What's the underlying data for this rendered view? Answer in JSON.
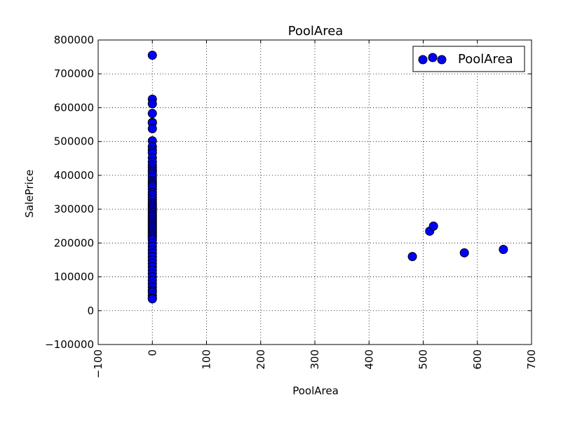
{
  "chart_data": {
    "type": "scatter",
    "title": "PoolArea",
    "xlabel": "PoolArea",
    "ylabel": "SalePrice",
    "xlim": [
      -100,
      700
    ],
    "ylim": [
      -100000,
      800000
    ],
    "x_ticks": [
      -100,
      0,
      100,
      200,
      300,
      400,
      500,
      600,
      700
    ],
    "y_ticks": [
      -100000,
      0,
      100000,
      200000,
      300000,
      400000,
      500000,
      600000,
      700000,
      800000
    ],
    "x_tick_labels": [
      "−100",
      "0",
      "100",
      "200",
      "300",
      "400",
      "500",
      "600",
      "700"
    ],
    "y_tick_labels": [
      "−100000",
      "0",
      "100000",
      "200000",
      "300000",
      "400000",
      "500000",
      "600000",
      "700000",
      "800000"
    ],
    "grid": true,
    "legend_position": "top-right",
    "marker_color": "#0000ff",
    "series": [
      {
        "name": "PoolArea",
        "x": [
          0,
          0,
          0,
          0,
          0,
          0,
          0,
          0,
          0,
          0,
          0,
          0,
          0,
          0,
          0,
          0,
          0,
          0,
          0,
          0,
          0,
          0,
          0,
          0,
          0,
          0,
          0,
          0,
          0,
          0,
          0,
          0,
          0,
          0,
          0,
          0,
          0,
          0,
          0,
          0,
          0,
          0,
          0,
          0,
          0,
          0,
          0,
          0,
          0,
          0,
          0,
          0,
          0,
          0,
          0,
          0,
          0,
          0,
          0,
          0,
          0,
          0,
          0,
          0,
          0,
          0,
          0,
          0,
          0,
          0,
          480,
          512,
          519,
          576,
          648
        ],
        "y": [
          755000,
          625000,
          611657,
          582933,
          556581,
          555000,
          538000,
          501837,
          485000,
          475000,
          466500,
          451950,
          440000,
          430000,
          423000,
          415298,
          410000,
          402000,
          394617,
          385000,
          378500,
          372500,
          367294,
          359100,
          350000,
          342643,
          335000,
          328000,
          320000,
          315000,
          310000,
          305000,
          300000,
          295000,
          290000,
          285000,
          280000,
          275000,
          270000,
          265000,
          260000,
          255000,
          250000,
          245000,
          240000,
          235000,
          230000,
          225000,
          220000,
          215000,
          210000,
          200000,
          190000,
          180000,
          170000,
          160000,
          150000,
          140000,
          130000,
          120000,
          110000,
          100000,
          90000,
          80000,
          70000,
          60000,
          55000,
          45000,
          37900,
          34900,
          160000,
          235000,
          250000,
          171000,
          181000
        ]
      }
    ]
  }
}
